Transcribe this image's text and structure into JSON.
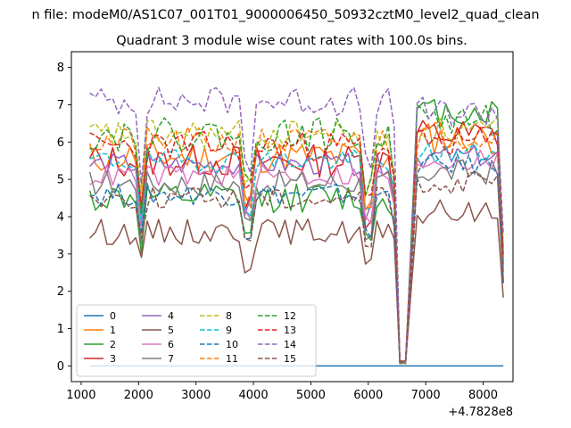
{
  "figure": {
    "suptitle": "n file: modeM0/AS1C07_001T01_9000006450_50932cztM0_level2_quad_clean"
  },
  "chart_data": {
    "type": "line",
    "title": "Quadrant 3 module wise count rates with 100.0s bins.",
    "xlabel": "",
    "ylabel": "",
    "xlim": [
      830,
      8520
    ],
    "ylim": [
      -0.42,
      8.42
    ],
    "x_offset_label": "+4.7828e8",
    "xticks": [
      1000,
      2000,
      3000,
      4000,
      5000,
      6000,
      7000,
      8000
    ],
    "xtick_labels": [
      "1000",
      "2000",
      "3000",
      "4000",
      "5000",
      "6000",
      "7000",
      "8000"
    ],
    "yticks": [
      0,
      1,
      2,
      3,
      4,
      5,
      6,
      7,
      8
    ],
    "ytick_labels": [
      "0",
      "1",
      "2",
      "3",
      "4",
      "5",
      "6",
      "7",
      "8"
    ],
    "grid": false,
    "legend": {
      "placement": "lower-left",
      "columns": 4
    },
    "x": {
      "start": 1150,
      "step": 100,
      "count": 73
    },
    "series": [
      {
        "name": "0",
        "color": "#1f77b4",
        "dashed": false,
        "kind": "zero"
      },
      {
        "name": "1",
        "color": "#ff7f0e",
        "dashed": false,
        "base": 5.6,
        "post": 6.1,
        "seed": 11,
        "amp": 0.45
      },
      {
        "name": "2",
        "color": "#2ca02c",
        "dashed": false,
        "base": 4.5,
        "post": 6.8,
        "seed": 12,
        "amp": 0.4
      },
      {
        "name": "3",
        "color": "#d62728",
        "dashed": false,
        "base": 5.5,
        "post": 6.2,
        "seed": 13,
        "amp": 0.45
      },
      {
        "name": "4",
        "color": "#9467bd",
        "dashed": false,
        "base": 5.4,
        "post": 5.6,
        "seed": 14,
        "amp": 0.3
      },
      {
        "name": "5",
        "color": "#8c564b",
        "dashed": false,
        "base": 3.6,
        "post": 4.1,
        "seed": 15,
        "amp": 0.35
      },
      {
        "name": "6",
        "color": "#e377c2",
        "dashed": false,
        "base": 5.1,
        "post": 5.5,
        "seed": 16,
        "amp": 0.3
      },
      {
        "name": "7",
        "color": "#7f7f7f",
        "dashed": false,
        "base": 4.9,
        "post": 5.2,
        "seed": 17,
        "amp": 0.35
      },
      {
        "name": "8",
        "color": "#bcbd22",
        "dashed": true,
        "base": 6.2,
        "post": 6.3,
        "seed": 18,
        "amp": 0.4
      },
      {
        "name": "9",
        "color": "#17becf",
        "dashed": true,
        "base": 5.5,
        "post": 5.7,
        "seed": 19,
        "amp": 0.3
      },
      {
        "name": "10",
        "color": "#1f77b4",
        "dashed": true,
        "base": 4.6,
        "post": 5.4,
        "seed": 20,
        "amp": 0.3
      },
      {
        "name": "11",
        "color": "#ff7f0e",
        "dashed": true,
        "base": 6.0,
        "post": 6.2,
        "seed": 21,
        "amp": 0.4
      },
      {
        "name": "12",
        "color": "#2ca02c",
        "dashed": true,
        "base": 6.2,
        "post": 6.6,
        "seed": 22,
        "amp": 0.45
      },
      {
        "name": "13",
        "color": "#d62728",
        "dashed": true,
        "base": 5.9,
        "post": 6.0,
        "seed": 23,
        "amp": 0.4
      },
      {
        "name": "14",
        "color": "#9467bd",
        "dashed": true,
        "base": 7.1,
        "post": 6.8,
        "seed": 24,
        "amp": 0.4
      },
      {
        "name": "15",
        "color": "#8c564b",
        "dashed": true,
        "base": 4.5,
        "post": 4.9,
        "seed": 25,
        "amp": 0.3
      }
    ]
  }
}
